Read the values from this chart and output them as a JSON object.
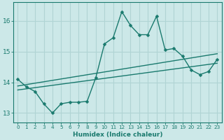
{
  "xlabel": "Humidex (Indice chaleur)",
  "background_color": "#cce8e8",
  "grid_color": "#b0d4d4",
  "line_color": "#1a7a6e",
  "xlim": [
    -0.5,
    23.5
  ],
  "ylim": [
    12.7,
    16.6
  ],
  "xticks": [
    0,
    1,
    2,
    3,
    4,
    5,
    6,
    7,
    8,
    9,
    10,
    11,
    12,
    13,
    14,
    15,
    16,
    17,
    18,
    19,
    20,
    21,
    22,
    23
  ],
  "yticks": [
    13,
    14,
    15,
    16
  ],
  "series1_x": [
    0,
    1,
    2,
    3,
    4,
    5,
    6,
    7,
    8,
    9,
    10,
    11,
    12,
    13,
    14,
    15,
    16,
    17,
    18,
    19,
    20,
    21,
    22,
    23
  ],
  "series1_y": [
    14.1,
    13.85,
    13.7,
    13.3,
    13.0,
    13.3,
    13.35,
    13.35,
    13.38,
    14.15,
    15.25,
    15.45,
    16.3,
    15.85,
    15.55,
    15.55,
    16.15,
    15.05,
    15.1,
    14.85,
    14.4,
    14.25,
    14.35,
    14.75
  ],
  "series2_x": [
    0,
    23
  ],
  "series2_y": [
    13.88,
    14.93
  ],
  "series3_x": [
    0,
    23
  ],
  "series3_y": [
    13.75,
    14.62
  ],
  "marker_size": 2.5,
  "line_width": 1.0
}
